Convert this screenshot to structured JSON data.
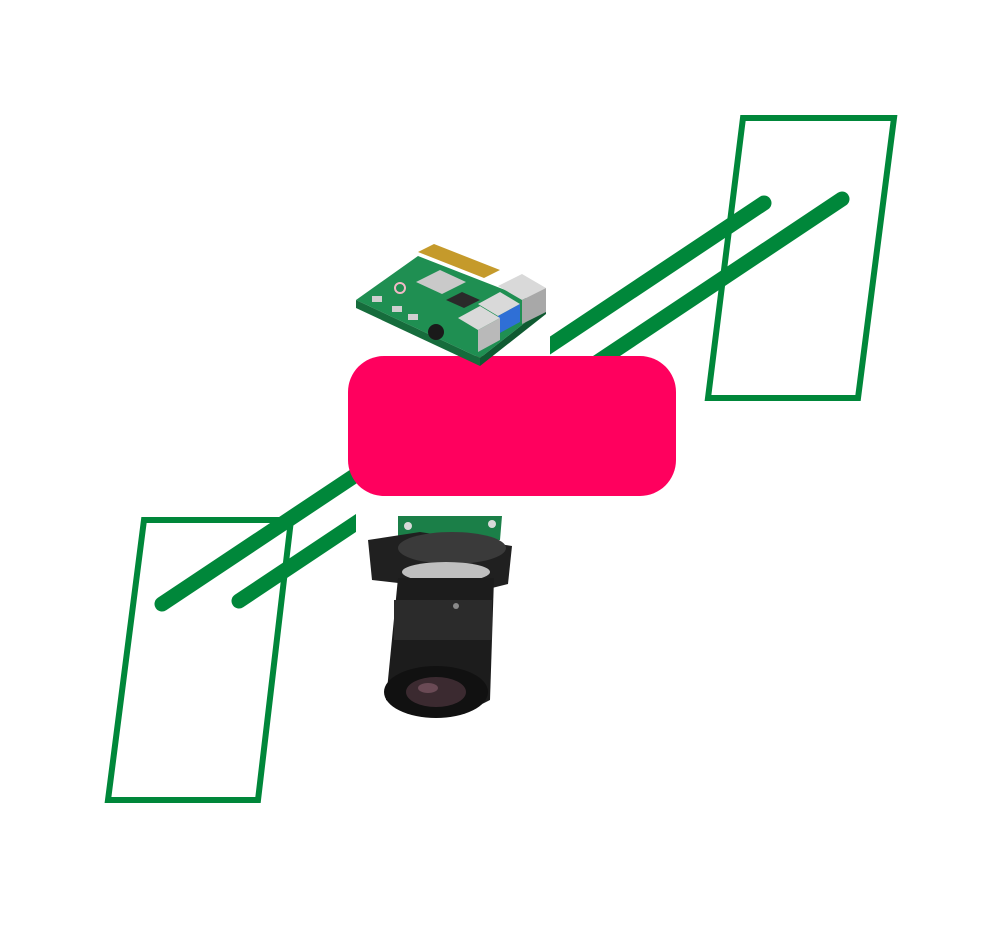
{
  "colors": {
    "background": "#ffffff",
    "rail": "#00873a",
    "panel_outline": "#00873a",
    "block": "#ff005e",
    "board_pcb": "#1f8f52",
    "board_chip": "#c9c9c9",
    "board_connector": "#d9d9d9",
    "board_pins": "#c59a2b",
    "camera_pcb": "#1b7f48",
    "camera_lens": "#1c1c1c"
  },
  "diagram": {
    "panels": [
      {
        "name": "left-panel"
      },
      {
        "name": "right-panel"
      }
    ],
    "rails": [
      {
        "name": "upper-rail"
      },
      {
        "name": "lower-rail"
      }
    ],
    "center_block": {
      "name": "center-block"
    },
    "components": [
      {
        "name": "raspberry-pi-board",
        "icon": "raspberry-pi-board-icon"
      },
      {
        "name": "camera-module",
        "icon": "camera-lens-icon"
      }
    ]
  }
}
